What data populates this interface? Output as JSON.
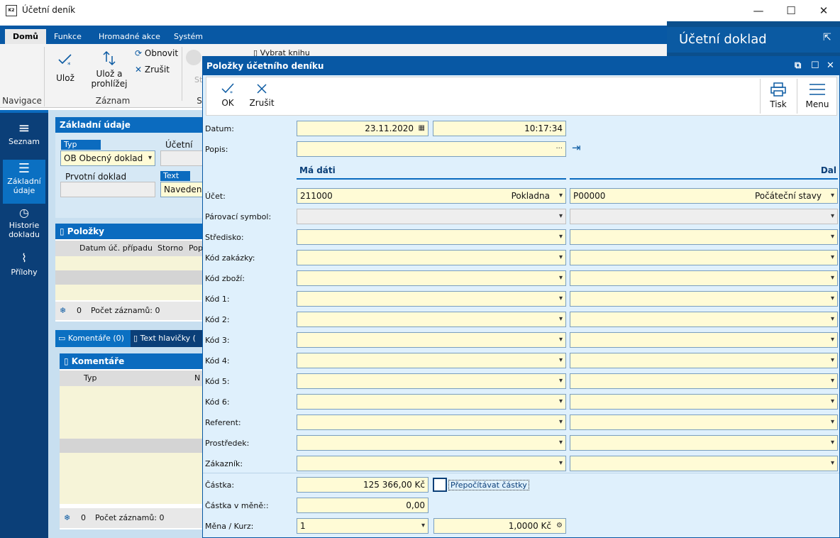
{
  "window": {
    "title": "Účetní deník",
    "minimize": "—",
    "maximize": "☐",
    "close": "✕"
  },
  "ribbon": {
    "tabs": [
      "Domů",
      "Funkce",
      "Hromadné akce",
      "Systém"
    ],
    "uloz": "Ulož",
    "uloz_prohlizej_1": "Ulož a",
    "uloz_prohlizej_2": "prohlížej",
    "obnovit": "Obnovit",
    "zrusit": "Zrušit",
    "st": "St",
    "vybrat_knihu": "Vybrat knihu",
    "group_navigace": "Navigace",
    "group_zaznam": "Záznam",
    "group_s": "S"
  },
  "rightpanel": {
    "title": "Účetní doklad"
  },
  "leftnav": {
    "items": [
      {
        "l1": "Seznam",
        "l2": ""
      },
      {
        "l1": "Základní",
        "l2": "údaje"
      },
      {
        "l1": "Historie",
        "l2": "dokladu"
      },
      {
        "l1": "Přílohy",
        "l2": ""
      }
    ]
  },
  "bgform": {
    "zakladni": "Základní údaje",
    "typ_lbl": "Typ",
    "typ_val": "OB Obecný doklad",
    "ucetni_lbl": "Účetní do",
    "prvotni_lbl": "Prvotní doklad",
    "text_lbl": "Text",
    "text_val": "Navedení",
    "polozky": "Položky",
    "col1": "Datum úč. případu",
    "col2": "Storno",
    "col3": "Pop",
    "count": "0",
    "count_lbl": "Počet záznamů: 0",
    "tab_koment": "Komentáře (0)",
    "tab_text": "Text hlavičky (",
    "komentare": "Komentáře",
    "kcol1": "Typ",
    "kcol2": "N",
    "kcount": "0",
    "kcount_lbl": "Počet záznamů: 0"
  },
  "dialog": {
    "title": "Položky účetního deníku",
    "ok": "OK",
    "zrusit": "Zrušit",
    "tisk": "Tisk",
    "menu": "Menu",
    "datum_lbl": "Datum:",
    "datum": "23.11.2020",
    "cas": "10:17:34",
    "popis_lbl": "Popis:",
    "popis_btn": "···",
    "ma_dati": "Má dáti",
    "dal": "Dal",
    "ucet_lbl": "Účet:",
    "md_ucet": "211000",
    "md_ucet_name": "Pokladna",
    "dal_ucet": "P00000",
    "dal_ucet_name": "Počáteční stavy",
    "rows": [
      "Párovací symbol:",
      "Středisko:",
      "Kód zakázky:",
      "Kód zboží:",
      "Kód 1:",
      "Kód 2:",
      "Kód 3:",
      "Kód 4:",
      "Kód 5:",
      "Kód 6:",
      "Referent:",
      "Prostředek:",
      "Zákazník:"
    ],
    "castka_lbl": "Částka:",
    "castka": "125 366,00 Kč",
    "prepocitat": "Přepočítávat částky",
    "castka_mene_lbl": "Částka v měně::",
    "castka_mene": "0,00",
    "mena_lbl": "Měna / Kurz:",
    "mena": "1",
    "kurz": "1,0000 Kč"
  }
}
